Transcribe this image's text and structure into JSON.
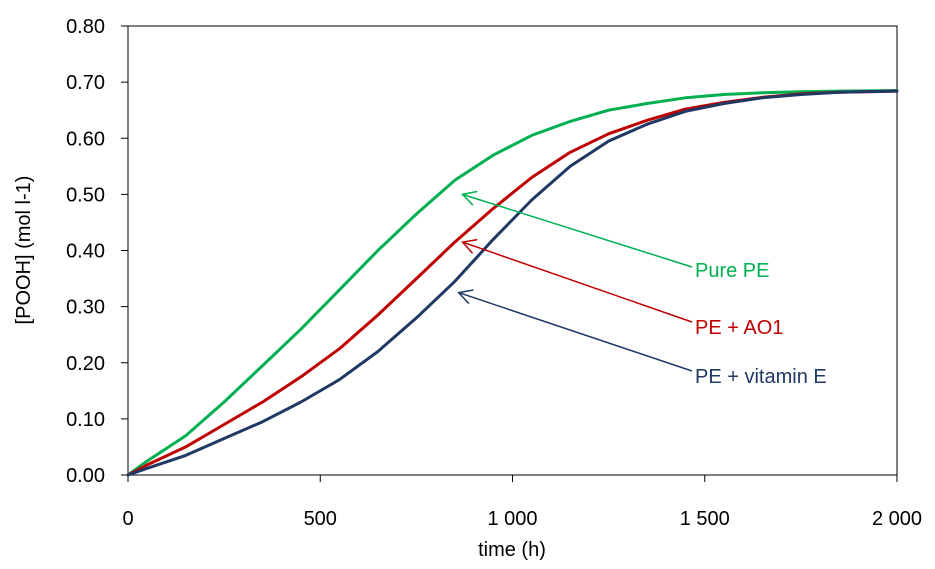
{
  "chart_data": {
    "type": "line",
    "title": "",
    "xlabel": "time (h)",
    "ylabel": "[POOH] (mol l-1)",
    "xlim": [
      0,
      2000
    ],
    "ylim": [
      0,
      0.8
    ],
    "x_ticks": [
      0,
      500,
      1000,
      1500,
      2000
    ],
    "x_tick_labels": [
      "0",
      "500",
      "1 000",
      "1 500",
      "2 000"
    ],
    "y_ticks": [
      0,
      0.1,
      0.2,
      0.3,
      0.4,
      0.5,
      0.6,
      0.7,
      0.8
    ],
    "y_tick_labels": [
      "0.00",
      "0.10",
      "0.20",
      "0.30",
      "0.40",
      "0.50",
      "0.60",
      "0.70",
      "0.80"
    ],
    "grid": false,
    "series": [
      {
        "name": "Pure PE",
        "color": "#00b050",
        "x": [
          0,
          50,
          150,
          250,
          350,
          450,
          550,
          650,
          750,
          850,
          950,
          1050,
          1150,
          1250,
          1350,
          1450,
          1550,
          1650,
          1750,
          1850,
          2000
        ],
        "y": [
          0,
          0.025,
          0.07,
          0.13,
          0.195,
          0.26,
          0.33,
          0.4,
          0.465,
          0.525,
          0.57,
          0.605,
          0.63,
          0.65,
          0.662,
          0.672,
          0.678,
          0.681,
          0.683,
          0.684,
          0.685
        ]
      },
      {
        "name": "PE + AO1",
        "color": "#c00000",
        "x": [
          0,
          50,
          150,
          250,
          350,
          450,
          550,
          650,
          750,
          850,
          950,
          1050,
          1150,
          1250,
          1350,
          1450,
          1550,
          1650,
          1750,
          1850,
          2000
        ],
        "y": [
          0,
          0.018,
          0.05,
          0.09,
          0.13,
          0.175,
          0.225,
          0.285,
          0.35,
          0.415,
          0.475,
          0.53,
          0.575,
          0.608,
          0.632,
          0.652,
          0.664,
          0.673,
          0.679,
          0.682,
          0.684
        ]
      },
      {
        "name": "PE + vitamin E",
        "color": "#1f3864",
        "x": [
          0,
          50,
          150,
          250,
          350,
          450,
          550,
          650,
          750,
          850,
          950,
          1050,
          1150,
          1250,
          1350,
          1450,
          1550,
          1650,
          1750,
          1850,
          2000
        ],
        "y": [
          0,
          0.012,
          0.035,
          0.065,
          0.095,
          0.13,
          0.17,
          0.22,
          0.28,
          0.345,
          0.42,
          0.49,
          0.55,
          0.595,
          0.625,
          0.648,
          0.662,
          0.672,
          0.678,
          0.682,
          0.684
        ]
      }
    ],
    "annotations": [
      {
        "text": "Pure PE",
        "color": "#00b050",
        "arrow_to": [
          870,
          0.5
        ]
      },
      {
        "text": "PE + AO1",
        "color": "#c00000",
        "arrow_to": [
          870,
          0.415
        ]
      },
      {
        "text": "PE + vitamin E",
        "color": "#1f3864",
        "arrow_to": [
          860,
          0.325
        ]
      }
    ]
  }
}
